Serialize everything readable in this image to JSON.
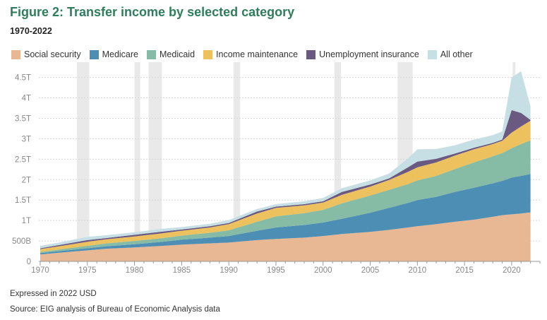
{
  "title": "Figure 2: Transfer income by selected category",
  "subtitle": "1970-2022",
  "footnote": "Expressed in 2022 USD",
  "source": "Source: EIG analysis of Bureau of Economic Analysis data",
  "chart_data": {
    "type": "area",
    "stacked": true,
    "title": "Figure 2: Transfer income by selected category",
    "subtitle": "1970-2022",
    "xlabel": "",
    "ylabel": "",
    "xlim": [
      1970,
      2023
    ],
    "ylim": [
      0,
      4.7
    ],
    "y_unit": "trillions of 2022 USD",
    "y_ticks": [
      {
        "value": 0,
        "label": "0"
      },
      {
        "value": 0.5,
        "label": "500B"
      },
      {
        "value": 1,
        "label": "1T"
      },
      {
        "value": 1.5,
        "label": "1.5T"
      },
      {
        "value": 2,
        "label": "2T"
      },
      {
        "value": 2.5,
        "label": "2.5T"
      },
      {
        "value": 3,
        "label": "3T"
      },
      {
        "value": 3.5,
        "label": "3.5T"
      },
      {
        "value": 4,
        "label": "4T"
      },
      {
        "value": 4.5,
        "label": "4.5T"
      }
    ],
    "x_ticks": [
      {
        "value": 1970,
        "label": "1970"
      },
      {
        "value": 1975,
        "label": "1975"
      },
      {
        "value": 1980,
        "label": "1980"
      },
      {
        "value": 1985,
        "label": "1985"
      },
      {
        "value": 1990,
        "label": "1990"
      },
      {
        "value": 1995,
        "label": "1995"
      },
      {
        "value": 2000,
        "label": "2000"
      },
      {
        "value": 2005,
        "label": "2005"
      },
      {
        "value": 2010,
        "label": "2010"
      },
      {
        "value": 2015,
        "label": "2015"
      },
      {
        "value": 2020,
        "label": "2020"
      }
    ],
    "recessions": [
      [
        1973.9,
        1975.2
      ],
      [
        1980.0,
        1980.6
      ],
      [
        1981.5,
        1982.9
      ],
      [
        1990.5,
        1991.2
      ],
      [
        2001.2,
        2001.9
      ],
      [
        2007.9,
        2009.5
      ],
      [
        2020.1,
        2020.4
      ]
    ],
    "legend_position": "top",
    "x": [
      1970,
      1972,
      1975,
      1977,
      1980,
      1983,
      1985,
      1988,
      1990,
      1993,
      1995,
      1998,
      2000,
      2002,
      2005,
      2007,
      2009,
      2010,
      2012,
      2014,
      2016,
      2018,
      2019,
      2020,
      2021,
      2022
    ],
    "series": [
      {
        "name": "Social security",
        "color": "#e8b793",
        "values": [
          0.17,
          0.21,
          0.27,
          0.31,
          0.34,
          0.38,
          0.41,
          0.44,
          0.46,
          0.52,
          0.55,
          0.58,
          0.62,
          0.67,
          0.72,
          0.77,
          0.83,
          0.86,
          0.91,
          0.97,
          1.02,
          1.09,
          1.13,
          1.15,
          1.17,
          1.2
        ]
      },
      {
        "name": "Medicare",
        "color": "#4d8eb5",
        "values": [
          0.03,
          0.04,
          0.05,
          0.06,
          0.08,
          0.1,
          0.12,
          0.14,
          0.16,
          0.23,
          0.28,
          0.31,
          0.33,
          0.37,
          0.47,
          0.54,
          0.6,
          0.64,
          0.67,
          0.73,
          0.78,
          0.82,
          0.84,
          0.9,
          0.92,
          0.94
        ]
      },
      {
        "name": "Medicaid",
        "color": "#86bba6",
        "values": [
          0.03,
          0.04,
          0.06,
          0.07,
          0.08,
          0.09,
          0.1,
          0.12,
          0.14,
          0.22,
          0.27,
          0.29,
          0.31,
          0.38,
          0.42,
          0.44,
          0.46,
          0.48,
          0.51,
          0.56,
          0.62,
          0.66,
          0.68,
          0.72,
          0.78,
          0.82
        ]
      },
      {
        "name": "Income maintenance",
        "color": "#edc25e",
        "values": [
          0.07,
          0.08,
          0.1,
          0.1,
          0.11,
          0.12,
          0.12,
          0.13,
          0.15,
          0.2,
          0.21,
          0.19,
          0.18,
          0.21,
          0.22,
          0.24,
          0.3,
          0.32,
          0.33,
          0.33,
          0.32,
          0.3,
          0.3,
          0.38,
          0.43,
          0.48
        ]
      },
      {
        "name": "Unemployment insurance",
        "color": "#6a5981",
        "values": [
          0.02,
          0.03,
          0.04,
          0.03,
          0.04,
          0.04,
          0.03,
          0.03,
          0.03,
          0.05,
          0.03,
          0.03,
          0.03,
          0.07,
          0.05,
          0.04,
          0.11,
          0.14,
          0.09,
          0.05,
          0.04,
          0.03,
          0.03,
          0.55,
          0.33,
          0.02
        ]
      },
      {
        "name": "All other",
        "color": "#c6dfe5",
        "values": [
          0.06,
          0.06,
          0.08,
          0.07,
          0.06,
          0.07,
          0.06,
          0.06,
          0.07,
          0.06,
          0.06,
          0.07,
          0.08,
          0.09,
          0.1,
          0.12,
          0.22,
          0.3,
          0.24,
          0.2,
          0.2,
          0.19,
          0.2,
          0.8,
          1.02,
          0.33
        ]
      }
    ]
  }
}
